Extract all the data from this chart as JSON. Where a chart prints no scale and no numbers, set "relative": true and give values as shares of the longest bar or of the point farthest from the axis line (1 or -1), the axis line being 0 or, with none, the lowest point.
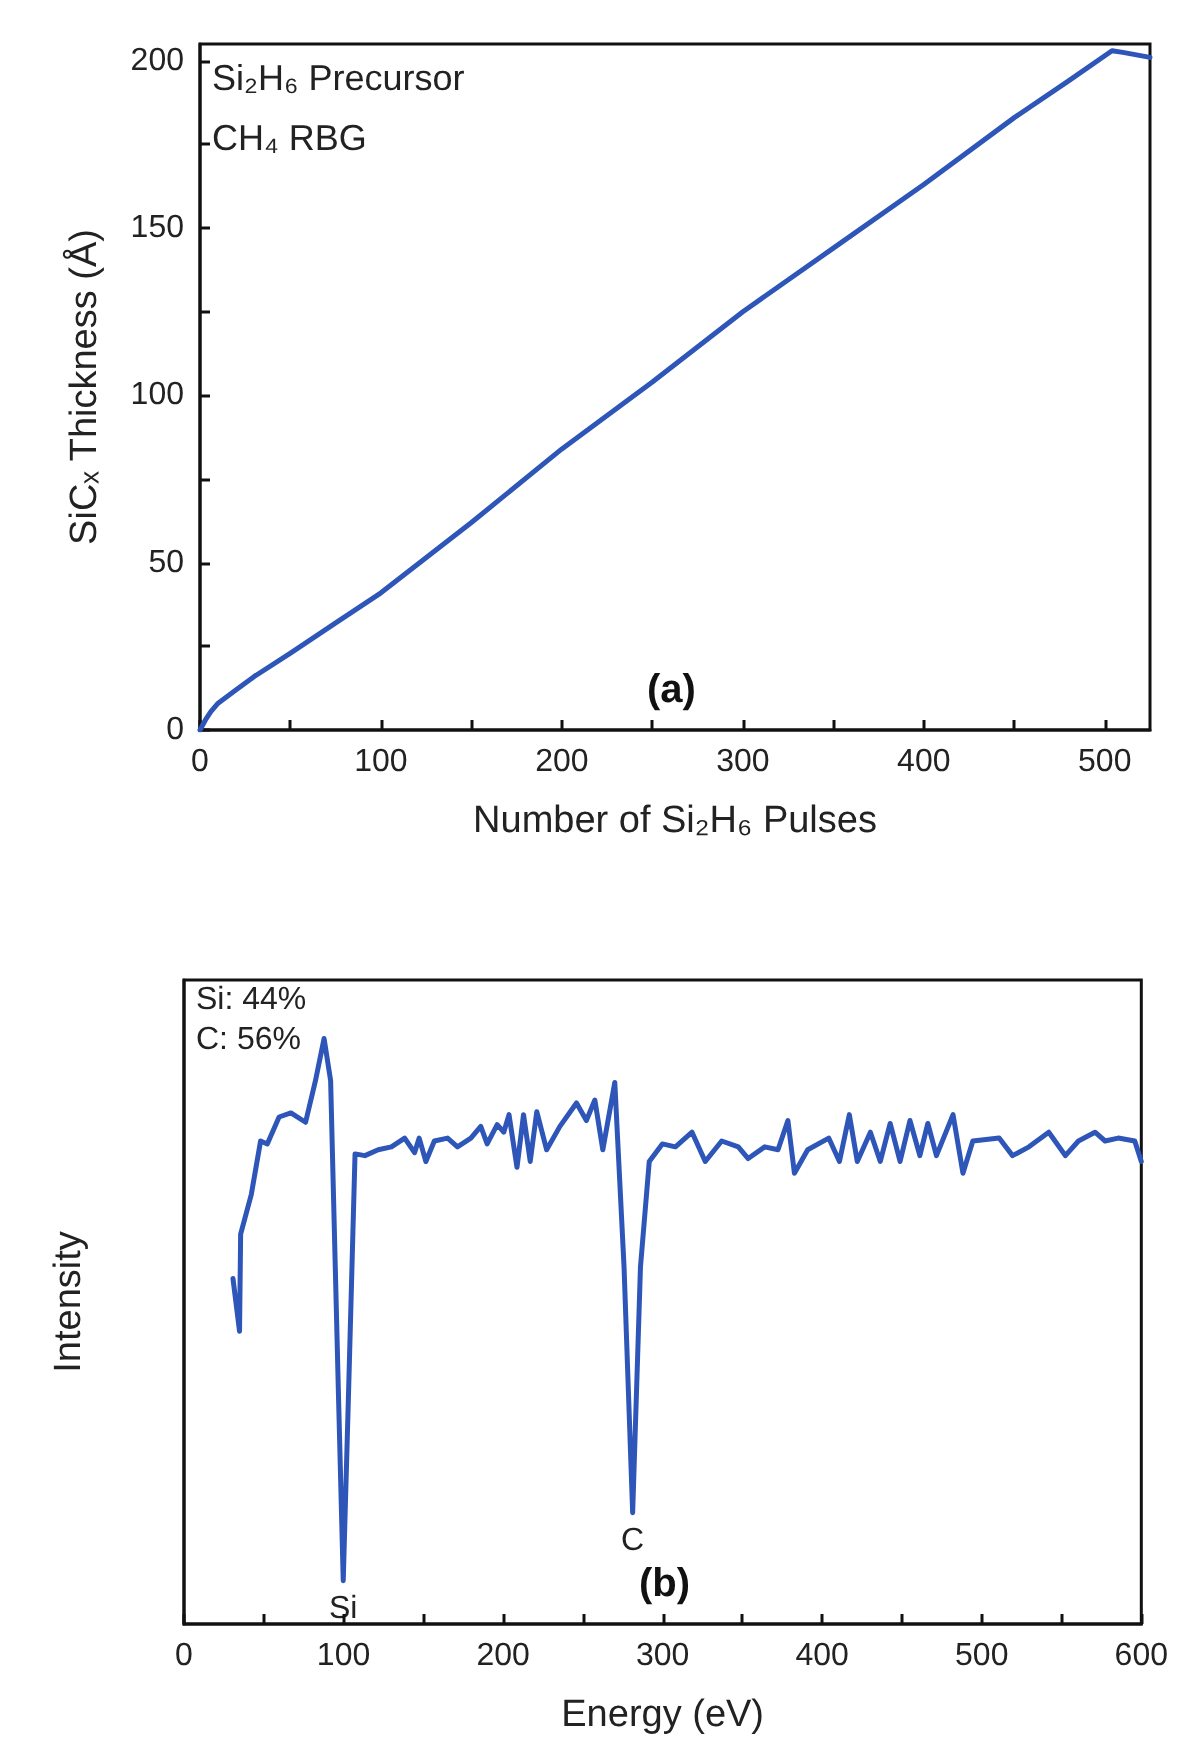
{
  "chart_data": [
    {
      "type": "line",
      "xlabel": "Number of Si₂H₆ Pulses",
      "ylabel": "SiCₓ Thickness (Å)",
      "annotations": [
        "Si₂H₆ Precursor",
        "CH₄ RBG",
        "(a)"
      ],
      "x": [
        0,
        3,
        6,
        10,
        20,
        30,
        50,
        75,
        100,
        150,
        200,
        250,
        300,
        350,
        400,
        450,
        480,
        504,
        510,
        525
      ],
      "series": [
        {
          "color": "#2e55b8",
          "values": [
            0,
            3,
            5.5,
            8,
            12,
            16,
            23,
            32,
            41,
            62,
            84,
            104,
            125,
            144,
            163,
            183,
            194,
            203,
            202.5,
            201
          ]
        }
      ],
      "xlim": [
        0,
        525
      ],
      "xticks": [
        0,
        {
          "value": 50,
          "label": null
        },
        100,
        {
          "value": 150,
          "label": null
        },
        200,
        {
          "value": 250,
          "label": null
        },
        300,
        {
          "value": 350,
          "label": null
        },
        400,
        {
          "value": 450,
          "label": null
        },
        500
      ],
      "ylim": [
        0,
        205
      ],
      "yticks": [
        0,
        {
          "value": 25,
          "label": null
        },
        50,
        {
          "value": 75,
          "label": null
        },
        100,
        {
          "value": 125,
          "label": null
        },
        150,
        {
          "value": 175,
          "label": null
        },
        200
      ],
      "marker": "none",
      "line_style": "solid"
    },
    {
      "type": "line",
      "xlabel": "Energy (eV)",
      "ylabel": "Intensity",
      "relative": true,
      "annotations": [
        "Si: 44%",
        "C: 56%",
        "(b)",
        {
          "text": "Si",
          "x": 99.8,
          "y": 0.074
        },
        {
          "text": "C",
          "x": 281.2,
          "y": 0.19
        }
      ],
      "x": [
        30.7,
        34.8,
        35.5,
        42.2,
        48,
        52.2,
        59.6,
        67,
        76.2,
        82.4,
        87.8,
        91.9,
        96.9,
        99.8,
        103,
        107.2,
        113.4,
        121.7,
        130,
        138.3,
        144.5,
        147.4,
        151.6,
        156.9,
        165.2,
        171.4,
        179.8,
        186,
        190,
        196.3,
        200.4,
        203.7,
        208.7,
        212.8,
        217,
        221.1,
        227.3,
        235.6,
        246,
        252.2,
        257.5,
        262.5,
        270,
        275.8,
        281.2,
        286.1,
        291.6,
        299.8,
        308,
        318.4,
        326.7,
        337,
        347.4,
        353.6,
        364,
        372.3,
        378.5,
        382.6,
        390.9,
        404.1,
        410.8,
        417,
        422,
        430.2,
        436.4,
        442.6,
        448.8,
        455,
        461.2,
        466.2,
        471.6,
        482,
        488.2,
        494.4,
        510.9,
        519.3,
        529.6,
        542,
        552.4,
        560.6,
        571,
        577.3,
        585.5,
        595.9,
        600
      ],
      "series": [
        {
          "color": "#2e55b8",
          "values": [
            0.59,
            0.5,
            0.666,
            0.734,
            0.825,
            0.82,
            0.866,
            0.873,
            0.857,
            0.928,
            1,
            0.928,
            0.382,
            0.074,
            0.382,
            0.803,
            0.8,
            0.81,
            0.815,
            0.83,
            0.805,
            0.83,
            0.79,
            0.825,
            0.83,
            0.815,
            0.83,
            0.85,
            0.82,
            0.853,
            0.84,
            0.87,
            0.78,
            0.87,
            0.79,
            0.875,
            0.81,
            0.85,
            0.89,
            0.86,
            0.895,
            0.81,
            0.925,
            0.61,
            0.19,
            0.61,
            0.79,
            0.82,
            0.815,
            0.84,
            0.79,
            0.825,
            0.815,
            0.795,
            0.815,
            0.81,
            0.86,
            0.77,
            0.81,
            0.83,
            0.79,
            0.87,
            0.79,
            0.84,
            0.79,
            0.855,
            0.79,
            0.86,
            0.8,
            0.855,
            0.8,
            0.87,
            0.77,
            0.825,
            0.83,
            0.8,
            0.815,
            0.84,
            0.8,
            0.825,
            0.84,
            0.825,
            0.83,
            0.825,
            0.79
          ]
        }
      ],
      "xlim": [
        0,
        600
      ],
      "xticks": [
        0,
        {
          "value": 50,
          "label": null
        },
        100,
        {
          "value": 150,
          "label": null
        },
        200,
        {
          "value": 250,
          "label": null
        },
        300,
        {
          "value": 350,
          "label": null
        },
        400,
        {
          "value": 450,
          "label": null
        },
        500,
        {
          "value": 550,
          "label": null
        },
        600
      ],
      "marker": "none",
      "line_style": "solid"
    }
  ]
}
